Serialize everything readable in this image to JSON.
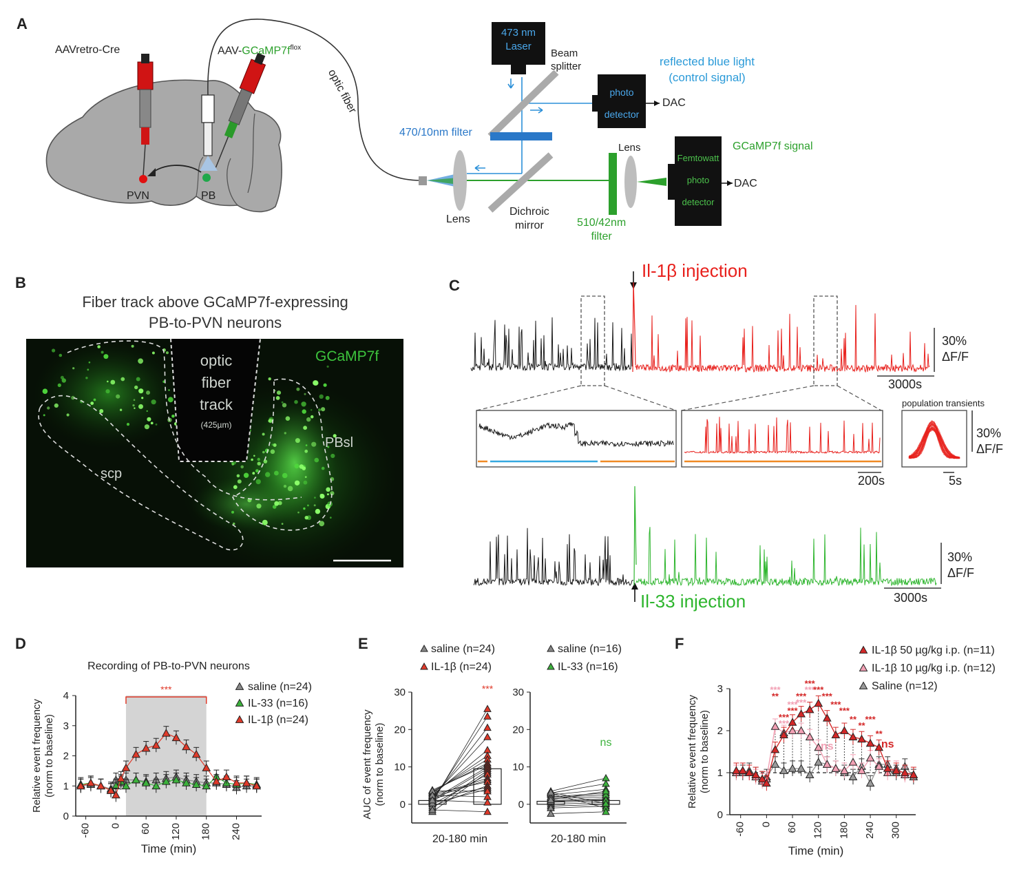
{
  "panels": {
    "a": "A",
    "b": "B",
    "c": "C",
    "d": "D",
    "e": "E",
    "f": "F"
  },
  "panelA": {
    "aav_retro": "AAVretro-Cre",
    "aav_gcamp_prefix": "AAV-",
    "aav_gcamp_main": "GCaMP7f",
    "aav_gcamp_sup": "flox",
    "optic_fiber": "optic fiber",
    "pvn": "PVN",
    "pb": "PB",
    "laser_l1": "473 nm",
    "laser_l2": "Laser",
    "beam_l1": "Beam",
    "beam_l2": "splitter",
    "filter470": "470/10nm filter",
    "reflected_l1": "reflected blue light",
    "reflected_l2": "(control signal)",
    "photo_l1": "photo",
    "photo_l2": "detector",
    "dac1": "DAC",
    "gcamp_signal": "GCaMP7f signal",
    "lens_top": "Lens",
    "femto_l1": "Femtowatt",
    "femto_l2": "photo",
    "femto_l3": "detector",
    "dac2": "DAC",
    "lens_bottom": "Lens",
    "dichroic_l1": "Dichroic",
    "dichroic_l2": "mirror",
    "filter510_l1": "510/42nm",
    "filter510_l2": "filter",
    "colors": {
      "blue": "#2a8fd8",
      "green": "#2ca02c",
      "red": "#d42020",
      "box": "#111111"
    }
  },
  "panelB": {
    "title_l1": "Fiber track above GCaMP7f-expressing",
    "title_l2": "PB-to-PVN neurons",
    "track_l1": "optic",
    "track_l2": "fiber",
    "track_l3": "track",
    "track_l4": "(425µm)",
    "gcamp": "GCaMP7f",
    "pbsl": "PBsl",
    "scp": "scp"
  },
  "panelC": {
    "il1b": "Il-1β injection",
    "il33": "Il-33 injection",
    "scale_top_l1": "30%",
    "scale_top_l2": "ΔF/F",
    "scale_top_time": "3000s",
    "inset_time": "200s",
    "pop_title": "population transients",
    "pop_l1": "30%",
    "pop_l2": "ΔF/F",
    "pop_time": "5s",
    "scale_bot_l1": "30%",
    "scale_bot_l2": "ΔF/F",
    "scale_bot_time": "3000s",
    "colors": {
      "black": "#1a1a1a",
      "red": "#e8201c",
      "green": "#2db52d",
      "blue": "#35a8e0",
      "orange": "#f08a24"
    }
  },
  "chart_data": [
    {
      "id": "D",
      "type": "line",
      "title": "Recording of PB-to-PVN neurons",
      "xlabel": "Time (min)",
      "ylabel": "Relative event frequency (norm to baseline)",
      "xticks": [
        -60,
        0,
        60,
        120,
        180,
        240
      ],
      "yticks": [
        0,
        1,
        2,
        3,
        4
      ],
      "xlim": [
        -80,
        290
      ],
      "ylim": [
        0,
        4
      ],
      "shaded": [
        20,
        180
      ],
      "significance": "***",
      "x": [
        -70,
        -50,
        -30,
        -10,
        0,
        10,
        20,
        40,
        60,
        80,
        100,
        120,
        140,
        160,
        180,
        200,
        220,
        240,
        260,
        280
      ],
      "series": [
        {
          "name": "saline (n=24)",
          "color": "#888888",
          "values": [
            1.0,
            1.05,
            1.0,
            0.9,
            1.2,
            1.1,
            1.2,
            1.2,
            1.15,
            1.2,
            1.25,
            1.3,
            1.2,
            1.15,
            1.1,
            1.1,
            1.05,
            0.95,
            1.0,
            1.0
          ]
        },
        {
          "name": "IL-33 (n=16)",
          "color": "#3cb23c",
          "values": [
            1.05,
            1.1,
            1.0,
            0.85,
            1.0,
            1.15,
            1.0,
            1.2,
            1.1,
            1.0,
            1.15,
            1.2,
            1.1,
            1.05,
            1.0,
            1.3,
            1.1,
            1.05,
            1.1,
            1.05
          ]
        },
        {
          "name": "IL-1β (n=24)",
          "color": "#e03a2a",
          "values": [
            1.0,
            1.1,
            1.0,
            0.85,
            0.7,
            1.25,
            1.6,
            2.05,
            2.25,
            2.35,
            2.75,
            2.6,
            2.3,
            2.05,
            1.6,
            1.15,
            1.3,
            1.1,
            1.1,
            1.0
          ]
        }
      ]
    },
    {
      "id": "E",
      "type": "bar",
      "ylabel": "AUC of event frequency (norm to baseline)",
      "subplots": [
        {
          "legend": [
            "saline (n=24)",
            "IL-1β (n=24)"
          ],
          "categories": [
            "20-180 min"
          ],
          "bars": [
            1.0,
            9.5
          ],
          "ylim": [
            -5,
            30
          ],
          "yticks": [
            0,
            10,
            20,
            30
          ],
          "significance": "***",
          "pairs_left": [
            0.5,
            1.0,
            1.5,
            2.0,
            2.5,
            3.0,
            3.2,
            3.5,
            3.8,
            1.2,
            0.8,
            -1.0,
            -2.0,
            0.0,
            2.2,
            1.8,
            2.8,
            -0.5,
            1.6,
            0.3,
            3.6,
            2.4,
            1.1,
            -1.5
          ],
          "pairs_right": [
            25.5,
            23.5,
            20.5,
            18.0,
            14.5,
            13.0,
            12.0,
            11.0,
            10.5,
            10.0,
            9.5,
            9.0,
            8.5,
            8.0,
            7.0,
            6.5,
            6.0,
            5.0,
            4.5,
            4.0,
            3.5,
            2.0,
            0.5,
            -2.0
          ]
        },
        {
          "legend": [
            "saline (n=16)",
            "IL-33 (n=16)"
          ],
          "categories": [
            "20-180 min"
          ],
          "bars": [
            0.8,
            1.0
          ],
          "ylim": [
            -5,
            30
          ],
          "yticks": [
            0,
            10,
            20,
            30
          ],
          "significance": "ns",
          "pairs_left": [
            3.5,
            3.0,
            2.5,
            2.0,
            1.5,
            1.0,
            0.5,
            0.0,
            -0.5,
            -1.0,
            2.8,
            1.8,
            0.8,
            -2.5,
            3.2,
            1.2
          ],
          "pairs_right": [
            7.0,
            5.5,
            4.0,
            3.0,
            2.0,
            1.5,
            1.0,
            0.5,
            0.0,
            -0.5,
            -1.0,
            2.5,
            1.2,
            -2.0,
            0.2,
            3.5
          ]
        }
      ]
    },
    {
      "id": "F",
      "type": "line",
      "xlabel": "Time (min)",
      "ylabel": "Relative event frequency (norm to baseline)",
      "xticks": [
        -60,
        0,
        60,
        120,
        180,
        240,
        300
      ],
      "yticks": [
        0,
        1,
        2,
        3
      ],
      "xlim": [
        -85,
        345
      ],
      "ylim": [
        0,
        3
      ],
      "x": [
        -70,
        -55,
        -40,
        -25,
        -10,
        0,
        20,
        40,
        60,
        80,
        100,
        120,
        140,
        160,
        180,
        200,
        220,
        240,
        260,
        280,
        300,
        320,
        340
      ],
      "series": [
        {
          "name": "IL-1β 50 µg/kg i.p. (n=11)",
          "color": "#d42828",
          "values": [
            1.05,
            1.05,
            1.0,
            0.95,
            0.85,
            0.75,
            1.55,
            1.9,
            2.2,
            2.4,
            2.5,
            2.65,
            2.3,
            1.9,
            2.0,
            1.85,
            1.8,
            1.7,
            1.6,
            1.1,
            1.05,
            1.0,
            0.95
          ]
        },
        {
          "name": "IL-1β 10 µg/kg i.p. (n=12)",
          "color": "#f2a0b4",
          "values": [
            1.0,
            1.05,
            1.0,
            0.9,
            0.8,
            0.85,
            2.1,
            1.95,
            2.0,
            2.0,
            1.85,
            1.6,
            1.2,
            1.1,
            1.05,
            1.25,
            1.05,
            1.35,
            1.15,
            1.0,
            1.1,
            0.95,
            0.95
          ]
        },
        {
          "name": "Saline (n=12)",
          "color": "#9a9a9a",
          "values": [
            1.0,
            1.0,
            1.05,
            0.95,
            0.85,
            0.9,
            1.2,
            1.05,
            1.1,
            1.1,
            0.95,
            1.25,
            1.2,
            1.1,
            1.0,
            0.9,
            1.15,
            0.75,
            1.2,
            1.2,
            1.0,
            1.15,
            0.9
          ]
        }
      ],
      "annotations": [
        {
          "x": 20,
          "text": "**",
          "color": "#d42828",
          "y": 2.75
        },
        {
          "x": 20,
          "text": "***",
          "color": "#f2a0b4",
          "y": 2.9
        },
        {
          "x": 40,
          "text": "***",
          "color": "#d42828",
          "y": 2.25
        },
        {
          "x": 40,
          "text": "***",
          "color": "#f2a0b4",
          "y": 2.1
        },
        {
          "x": 60,
          "text": "***",
          "color": "#f2a0b4",
          "y": 2.55
        },
        {
          "x": 60,
          "text": "***",
          "color": "#d42828",
          "y": 2.4
        },
        {
          "x": 80,
          "text": "***",
          "color": "#d42828",
          "y": 2.75
        },
        {
          "x": 80,
          "text": "***",
          "color": "#f2a0b4",
          "y": 2.6
        },
        {
          "x": 100,
          "text": "***",
          "color": "#d42828",
          "y": 3.05
        },
        {
          "x": 100,
          "text": "***",
          "color": "#f2a0b4",
          "y": 2.9
        },
        {
          "x": 120,
          "text": "***",
          "color": "#d42828",
          "y": 2.9
        },
        {
          "x": 140,
          "text": "***",
          "color": "#d42828",
          "y": 2.75
        },
        {
          "x": 160,
          "text": "***",
          "color": "#d42828",
          "y": 2.55
        },
        {
          "x": 180,
          "text": "***",
          "color": "#d42828",
          "y": 2.4
        },
        {
          "x": 200,
          "text": "**",
          "color": "#d42828",
          "y": 2.2
        },
        {
          "x": 220,
          "text": "**",
          "color": "#d42828",
          "y": 2.05
        },
        {
          "x": 240,
          "text": "***",
          "color": "#d42828",
          "y": 2.2
        },
        {
          "x": 260,
          "text": "**",
          "color": "#d42828",
          "y": 1.85
        },
        {
          "x": 280,
          "text": "ns",
          "color": "#d42828",
          "y": 1.6
        },
        {
          "x": 140,
          "text": "ns",
          "color": "#f2a0b4",
          "y": 1.55
        }
      ]
    }
  ]
}
